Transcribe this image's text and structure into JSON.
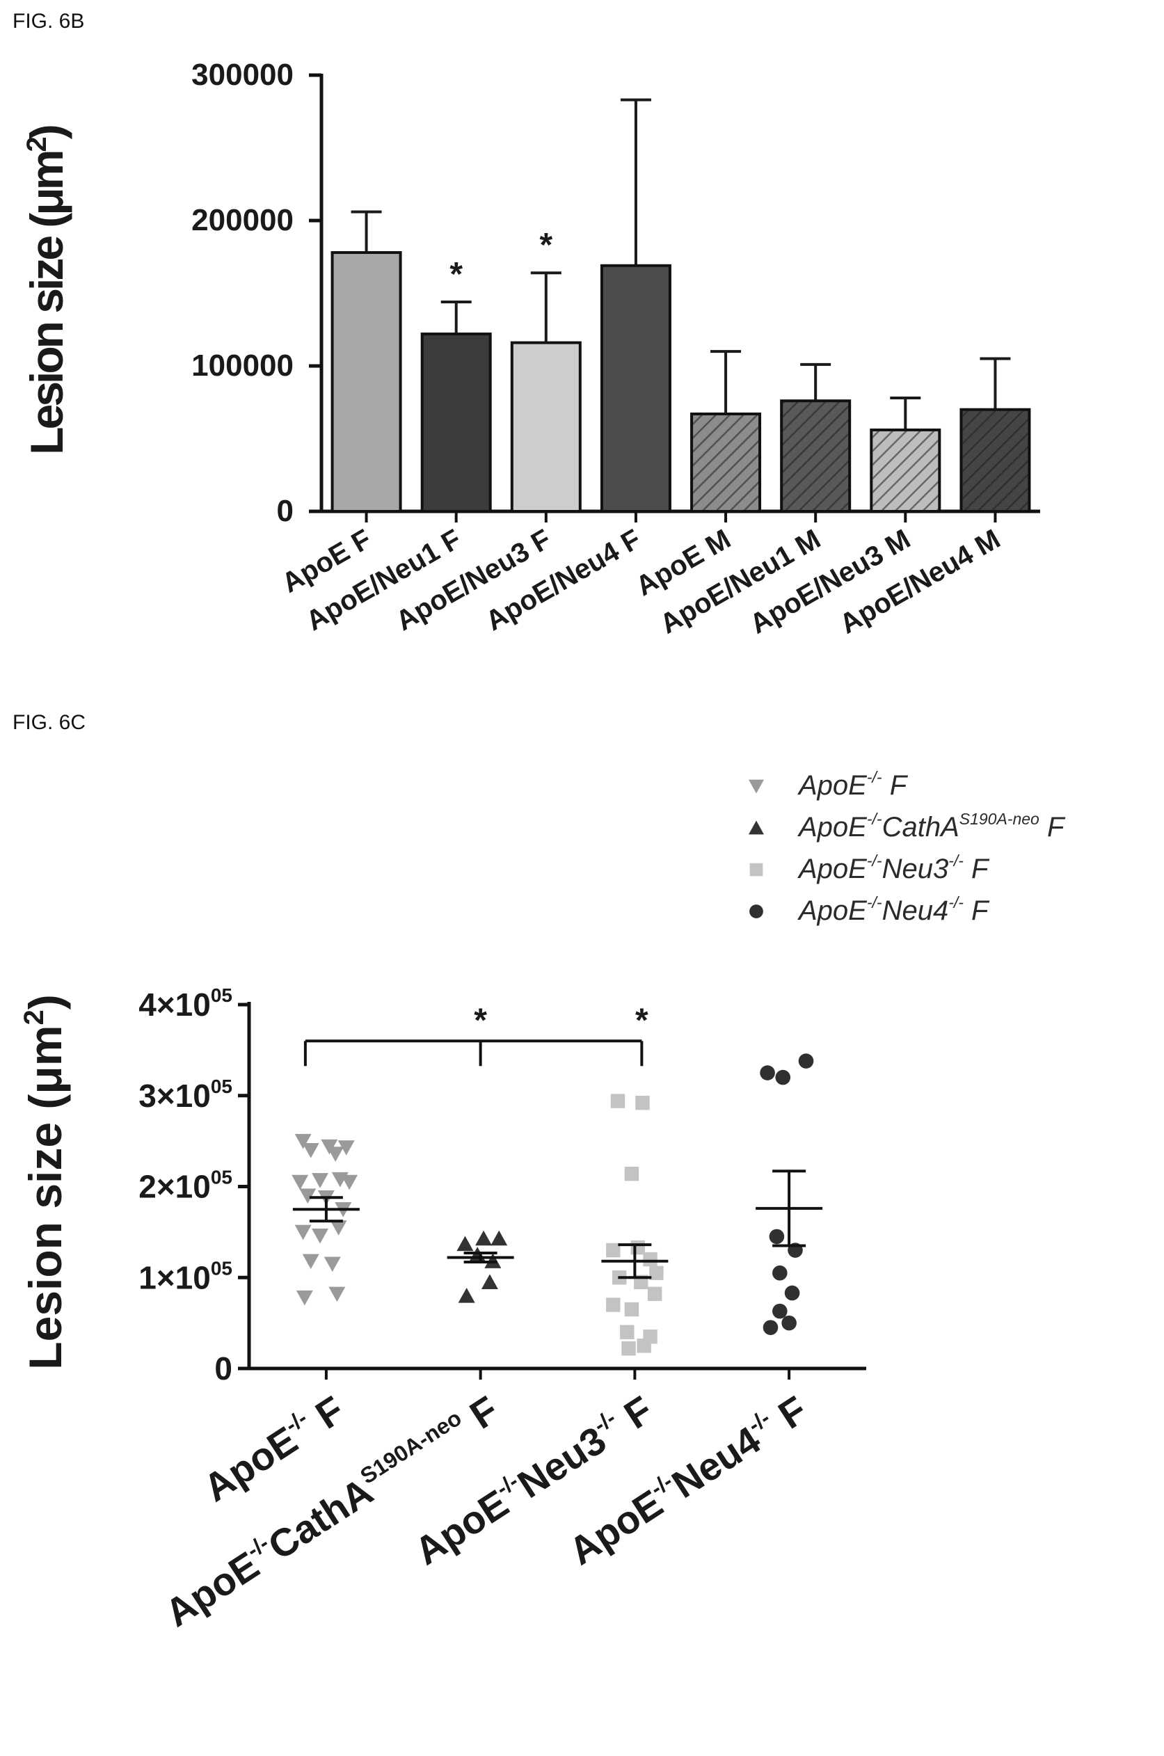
{
  "figure_b_label": "FIG. 6B",
  "figure_c_label": "FIG. 6C",
  "chart_data": [
    {
      "type": "bar",
      "ylabel": "Lesion size (μm²)",
      "ylim": [
        0,
        300000
      ],
      "yticks": [
        "0",
        "100000",
        "200000",
        "300000"
      ],
      "ytick_values": [
        0,
        100000,
        200000,
        300000
      ],
      "categories": [
        "ApoE F",
        "ApoE/Neu1 F",
        "ApoE/Neu3 F",
        "ApoE/Neu4 F",
        "ApoE M",
        "ApoE/Neu1 M",
        "ApoE/Neu3 M",
        "ApoE/Neu4 M"
      ],
      "values": [
        178000,
        122000,
        116000,
        169000,
        67000,
        76000,
        56000,
        70000
      ],
      "error_upper": [
        206000,
        144000,
        164000,
        283000,
        110000,
        101000,
        78000,
        105000
      ],
      "significance": [
        "",
        "*",
        "*",
        "",
        "",
        "",
        "",
        ""
      ],
      "fills": [
        "#a8a8a8",
        "#3c3c3c",
        "#cdcdcd",
        "#4c4c4c",
        "#8c8c8c",
        "#595959",
        "#bdbdbd",
        "#454545"
      ],
      "hatched": [
        false,
        false,
        false,
        false,
        true,
        true,
        true,
        true
      ]
    },
    {
      "type": "scatter",
      "ylabel": "Lesion size (μm²)",
      "ylim": [
        0,
        400000
      ],
      "yticks": [
        "0",
        "1×10",
        "2×10",
        "3×10",
        "4×10"
      ],
      "ytick_exponent": "05",
      "ytick_values": [
        0,
        100000,
        200000,
        300000,
        400000
      ],
      "categories": [
        {
          "main": "ApoE",
          "sup": "-/-",
          "mid": "",
          "sup2": "",
          "tail": " F"
        },
        {
          "main": "ApoE",
          "sup": "-/-",
          "mid": "CathA",
          "sup2": "S190A-neo",
          "tail": " F"
        },
        {
          "main": "ApoE",
          "sup": "-/-",
          "mid": "Neu3",
          "sup2": "-/-",
          "tail": " F"
        },
        {
          "main": "ApoE",
          "sup": "-/-",
          "mid": "Neu4",
          "sup2": "-/-",
          "tail": " F"
        }
      ],
      "legend": [
        {
          "main": "ApoE",
          "sup": "-/-",
          "mid": "",
          "sup2": "",
          "tail": " F",
          "marker": "triangle-down",
          "color": "#9a9a9a"
        },
        {
          "main": "ApoE",
          "sup": "-/-",
          "mid": "CathA",
          "sup2": "S190A-neo",
          "tail": " F",
          "marker": "triangle-up",
          "color": "#333333"
        },
        {
          "main": "ApoE",
          "sup": "-/-",
          "mid": "Neu3",
          "sup2": "-/-",
          "tail": " F",
          "marker": "square",
          "color": "#c3c3c3"
        },
        {
          "main": "ApoE",
          "sup": "-/-",
          "mid": "Neu4",
          "sup2": "-/-",
          "tail": " F",
          "marker": "circle",
          "color": "#303030"
        }
      ],
      "series": [
        {
          "marker": "triangle-down",
          "color": "#9a9a9a",
          "mean": 175000,
          "sem": 13000,
          "points": [
            [
              -0.15,
              250000
            ],
            [
              0.02,
              244000
            ],
            [
              0.13,
              243000
            ],
            [
              -0.1,
              240000
            ],
            [
              0.06,
              236000
            ],
            [
              -0.17,
              205000
            ],
            [
              -0.04,
              207000
            ],
            [
              0.09,
              208000
            ],
            [
              0.15,
              205000
            ],
            [
              -0.12,
              190000
            ],
            [
              0.0,
              188000
            ],
            [
              0.11,
              175000
            ],
            [
              -0.15,
              150000
            ],
            [
              -0.04,
              146000
            ],
            [
              0.08,
              155000
            ],
            [
              -0.1,
              118000
            ],
            [
              0.04,
              115000
            ],
            [
              -0.14,
              78000
            ],
            [
              0.07,
              82000
            ]
          ]
        },
        {
          "marker": "triangle-up",
          "color": "#333333",
          "mean": 122000,
          "sem": 5000,
          "points": [
            [
              -0.1,
              137000
            ],
            [
              0.02,
              143000
            ],
            [
              0.12,
              143000
            ],
            [
              -0.02,
              125000
            ],
            [
              0.08,
              118000
            ],
            [
              -0.09,
              80000
            ],
            [
              0.06,
              95000
            ]
          ]
        },
        {
          "marker": "square",
          "color": "#c3c3c3",
          "mean": 118000,
          "sem": 18000,
          "points": [
            [
              -0.11,
              294000
            ],
            [
              0.05,
              292000
            ],
            [
              -0.02,
              214000
            ],
            [
              -0.14,
              130000
            ],
            [
              0.02,
              133000
            ],
            [
              0.1,
              120000
            ],
            [
              -0.1,
              100000
            ],
            [
              0.04,
              95000
            ],
            [
              0.14,
              105000
            ],
            [
              -0.14,
              70000
            ],
            [
              -0.02,
              65000
            ],
            [
              0.13,
              82000
            ],
            [
              -0.05,
              40000
            ],
            [
              0.1,
              35000
            ],
            [
              -0.04,
              22000
            ],
            [
              0.06,
              25000
            ]
          ]
        },
        {
          "marker": "circle",
          "color": "#303030",
          "mean": 176000,
          "sem": 41000,
          "points": [
            [
              -0.14,
              325000
            ],
            [
              -0.04,
              320000
            ],
            [
              0.11,
              338000
            ],
            [
              -0.08,
              145000
            ],
            [
              0.04,
              130000
            ],
            [
              -0.06,
              105000
            ],
            [
              -0.06,
              63000
            ],
            [
              0.02,
              83000
            ],
            [
              -0.12,
              45000
            ],
            [
              0.0,
              50000
            ]
          ]
        }
      ],
      "significance_bracket": {
        "from": 0,
        "to": 2,
        "stars": [
          1,
          2
        ],
        "label": "*",
        "y": 360000
      }
    }
  ]
}
